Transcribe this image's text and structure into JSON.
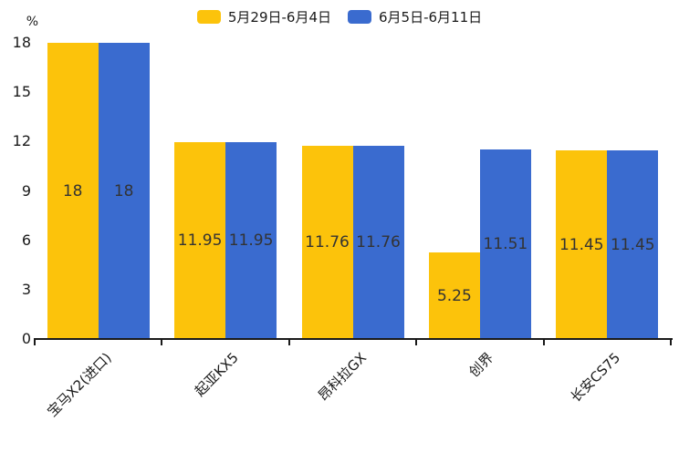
{
  "chart_data": {
    "type": "bar",
    "title": "",
    "categories": [
      "宝马X2(进口)",
      "起亚KX5",
      "昂科拉GX",
      "创界",
      "长安CS75"
    ],
    "series": [
      {
        "name": "5月29日-6月4日",
        "color": "#FCC30B",
        "values": [
          18,
          11.95,
          11.76,
          5.25,
          11.45
        ]
      },
      {
        "name": "6月5日-6月11日",
        "color": "#3A6BCF",
        "values": [
          18,
          11.95,
          11.76,
          11.51,
          11.45
        ]
      }
    ],
    "bar_labels": [
      "18",
      "11.95",
      "11.76",
      "5.25",
      "11.45",
      "18",
      "11.95",
      "11.76",
      "11.51",
      "11.45"
    ],
    "ylabel": "%",
    "yticks": [
      0,
      3,
      6,
      9,
      12,
      15,
      18
    ],
    "ylim": [
      0,
      18
    ],
    "grid": false,
    "legend_position": "top",
    "bar_label_color": "#333333",
    "axis_color": "#1a1a1a"
  }
}
